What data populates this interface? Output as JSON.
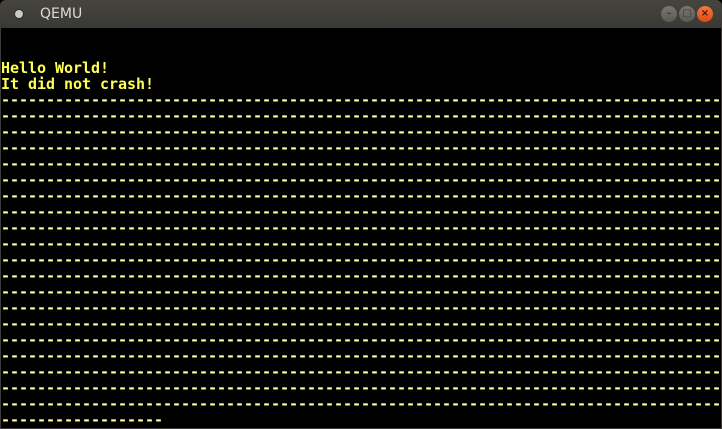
{
  "window": {
    "title": "QEMU",
    "buttons": {
      "minimize": "–",
      "maximize": "□",
      "close": "×"
    }
  },
  "console": {
    "text_color": "#ffff55",
    "lines": [
      "",
      "",
      "Hello World!",
      "It did not crash!",
      "--------------------------------------------------------------------------------",
      "--------------------------------------------------------------------------------",
      "--------------------------------------------------------------------------------",
      "--------------------------------------------------------------------------------",
      "--------------------------------------------------------------------------------",
      "--------------------------------------------------------------------------------",
      "--------------------------------------------------------------------------------",
      "--------------------------------------------------------------------------------",
      "--------------------------------------------------------------------------------",
      "--------------------------------------------------------------------------------",
      "--------------------------------------------------------------------------------",
      "--------------------------------------------------------------------------------",
      "--------------------------------------------------------------------------------",
      "--------------------------------------------------------------------------------",
      "--------------------------------------------------------------------------------",
      "--------------------------------------------------------------------------------",
      "--------------------------------------------------------------------------------",
      "--------------------------------------------------------------------------------",
      "--------------------------------------------------------------------------------",
      "--------------------------------------------------------------------------------",
      "------------------"
    ]
  }
}
